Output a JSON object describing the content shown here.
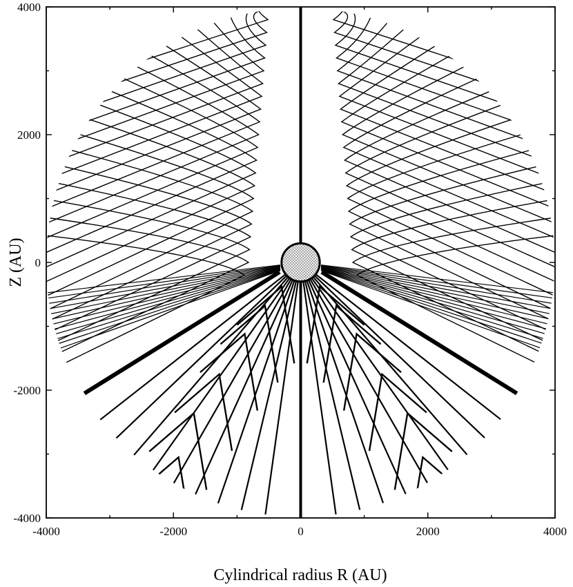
{
  "chart_data": {
    "type": "line",
    "title": "",
    "xlabel": "Cylindrical radius R (AU)",
    "ylabel": "Z (AU)",
    "xlim": [
      -4000,
      4000
    ],
    "ylim": [
      -4000,
      4000
    ],
    "xticks": [
      -4000,
      -2000,
      0,
      2000,
      4000
    ],
    "yticks": [
      -4000,
      -2000,
      0,
      2000,
      4000
    ],
    "xtick_labels": [
      "-4000",
      "-2000",
      "0",
      "2000",
      "4000"
    ],
    "ytick_labels": [
      "-4000",
      "-2000",
      "0",
      "2000",
      "4000"
    ],
    "grid": false,
    "legend": "none",
    "domain_radius": 4000,
    "central_source": {
      "center": [
        0,
        0
      ],
      "radius": 300,
      "fill": "stippled"
    },
    "thick_field_lines": [
      {
        "x": [
          0,
          0
        ],
        "y": [
          4000,
          -4000
        ]
      },
      {
        "x": [
          -330,
          -3400
        ],
        "y": [
          -150,
          -2050
        ]
      },
      {
        "x": [
          330,
          3400
        ],
        "y": [
          -150,
          -2050
        ]
      }
    ],
    "upper_region": {
      "description_values": {
        "outer_start_angles_deg_from_vertical": [
          4,
          8,
          12,
          16,
          20,
          24,
          28,
          32,
          36,
          40,
          44,
          48,
          52,
          56,
          60,
          64,
          68,
          72,
          76,
          80,
          84
        ],
        "kink_heights": [
          3800,
          3600,
          3400,
          3200,
          3000,
          2800,
          2600,
          2400,
          2200,
          2000,
          1800,
          1600,
          1400,
          1200,
          1000,
          800,
          600,
          400,
          200,
          0,
          -200
        ]
      }
    },
    "lower_region": {
      "nested_chevron_tips_left": [
        [
          -1920,
          -3050
        ],
        [
          -1680,
          -2360
        ],
        [
          -1280,
          -1750
        ],
        [
          -880,
          -1120
        ],
        [
          -560,
          -680
        ],
        [
          -300,
          -380
        ]
      ],
      "nested_chevron_tips_right": [
        [
          1920,
          -3050
        ],
        [
          1680,
          -2360
        ],
        [
          1280,
          -1750
        ],
        [
          880,
          -1120
        ],
        [
          560,
          -680
        ],
        [
          300,
          -380
        ]
      ]
    }
  },
  "colors": {
    "line": "#000000",
    "background": "#ffffff",
    "source_fill": "#e6e6e6"
  }
}
